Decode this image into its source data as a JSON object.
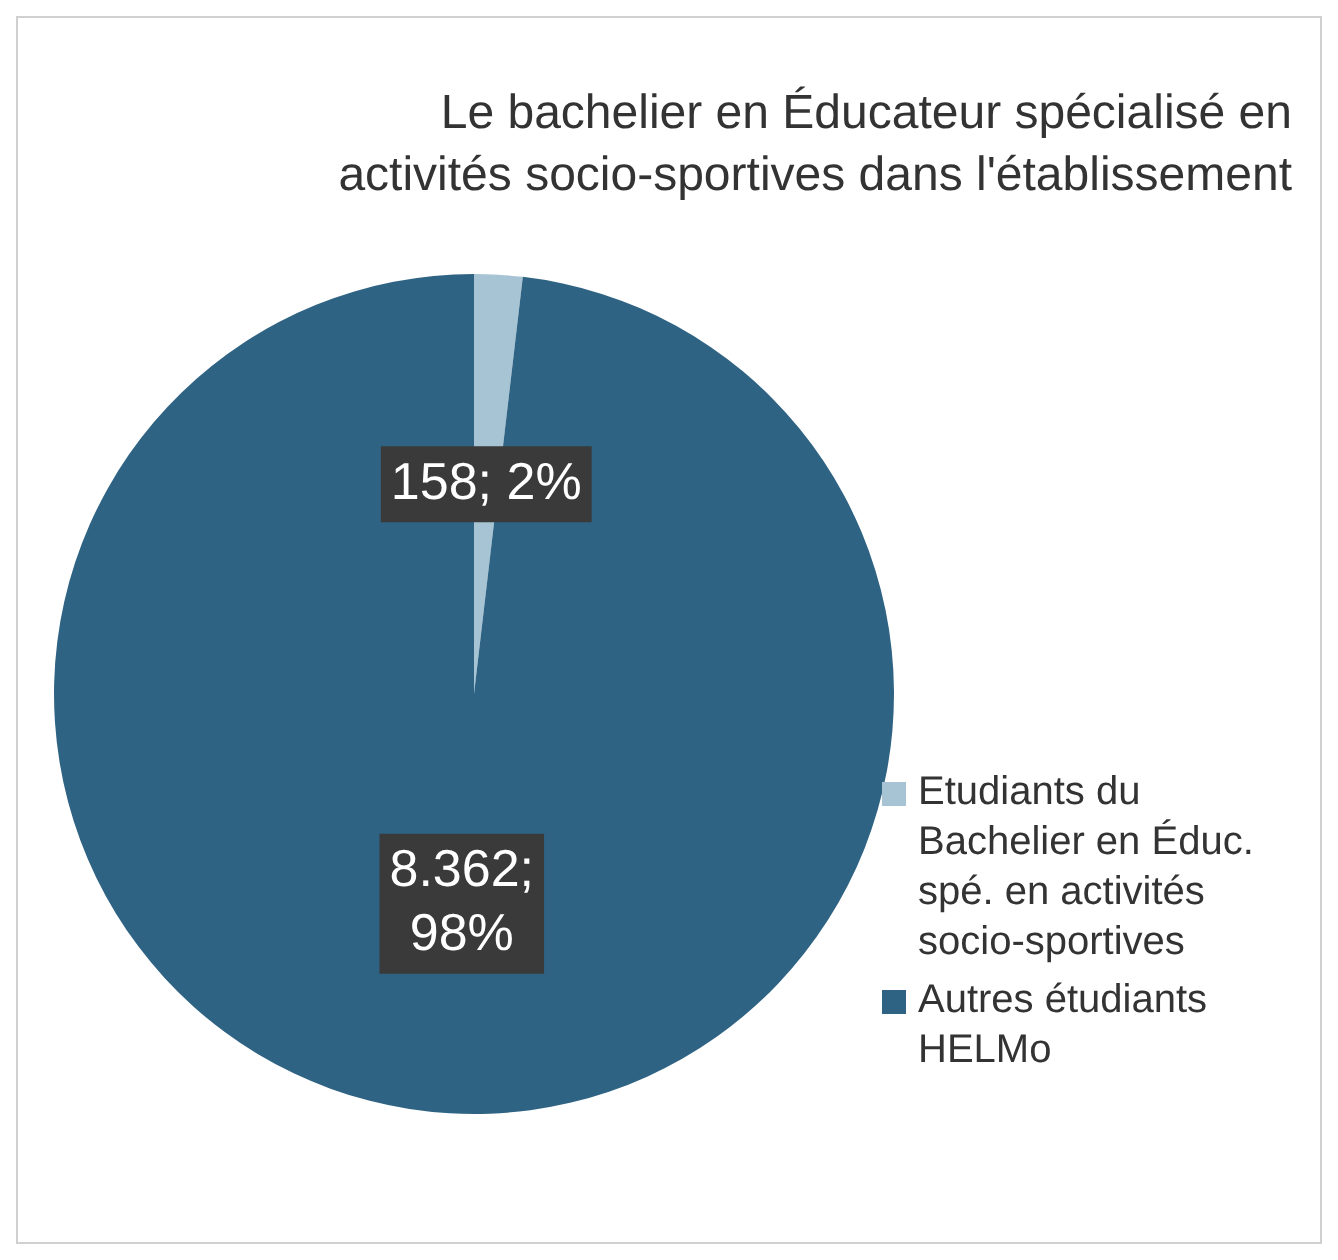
{
  "chart_data": {
    "type": "pie",
    "title": "Le bachelier en Éducateur spécialisé en activités socio-sportives dans l'établissement",
    "categories": [
      "Etudiants du Bachelier en Éduc. spé. en activités socio-sportives",
      "Autres étudiants HELMo"
    ],
    "values": [
      158,
      8362
    ],
    "colors": [
      "#a7c4d4",
      "#2f6384"
    ],
    "value_labels": [
      "158; 2%",
      "8.362; 98%"
    ],
    "legend": "right"
  }
}
